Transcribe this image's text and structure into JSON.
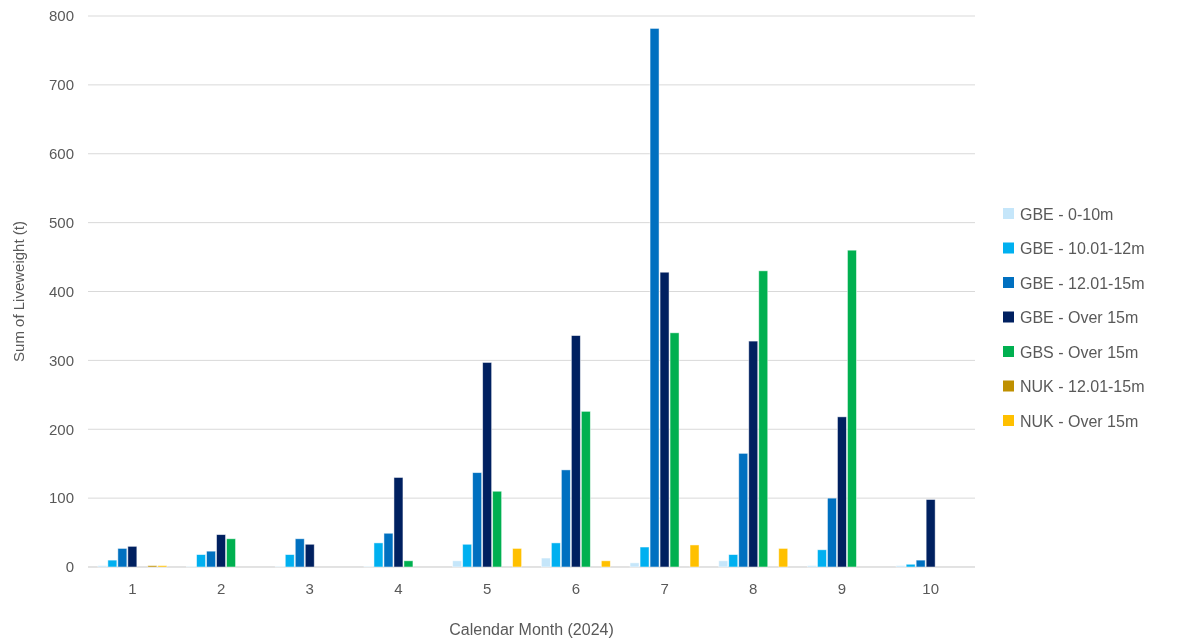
{
  "chart_data": {
    "type": "bar",
    "xlabel": "Calendar Month (2024)",
    "ylabel": "Sum of Liveweight (t)",
    "categories": [
      "1",
      "2",
      "3",
      "4",
      "5",
      "6",
      "7",
      "8",
      "9",
      "10"
    ],
    "series": [
      {
        "name": "GBE - 0-10m",
        "color": "#c5e6fa",
        "values": [
          2,
          1,
          1,
          1,
          9,
          13,
          6,
          9,
          2,
          2
        ]
      },
      {
        "name": "GBE - 10.01-12m",
        "color": "#00b0f0",
        "values": [
          10,
          18,
          18,
          35,
          33,
          35,
          29,
          18,
          25,
          4
        ]
      },
      {
        "name": "GBE - 12.01-15m",
        "color": "#0070c0",
        "values": [
          27,
          23,
          41,
          49,
          137,
          141,
          782,
          165,
          100,
          10
        ]
      },
      {
        "name": "GBE - Over 15m",
        "color": "#002060",
        "values": [
          30,
          47,
          33,
          130,
          297,
          336,
          428,
          328,
          218,
          98
        ]
      },
      {
        "name": "GBS - Over 15m",
        "color": "#00b050",
        "values": [
          null,
          41,
          null,
          9,
          110,
          226,
          340,
          430,
          460,
          null
        ]
      },
      {
        "name": "NUK - 12.01-15m",
        "color": "#bf9000",
        "values": [
          2,
          null,
          null,
          null,
          null,
          null,
          null,
          null,
          null,
          null
        ]
      },
      {
        "name": "NUK - Over 15m",
        "color": "#ffc000",
        "values": [
          2,
          null,
          null,
          null,
          27,
          9,
          32,
          27,
          null,
          null
        ]
      }
    ],
    "ylim": [
      0,
      800
    ],
    "yticks": [
      0,
      100,
      200,
      300,
      400,
      500,
      600,
      700,
      800
    ],
    "grid": "y",
    "legend": "right"
  }
}
